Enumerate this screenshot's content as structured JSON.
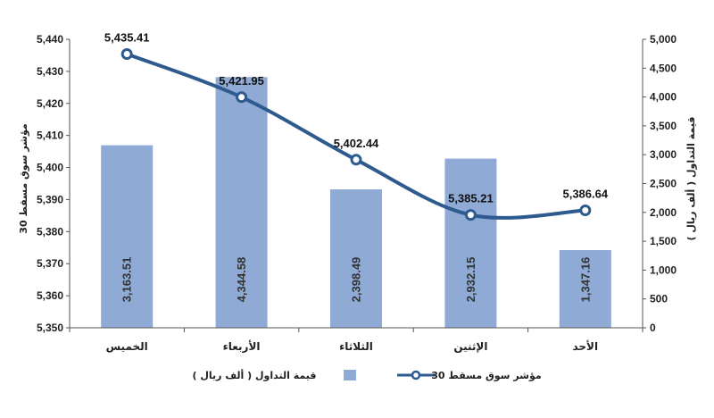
{
  "chart_data": {
    "type": "bar",
    "categories": [
      "الخميس",
      "الأربعاء",
      "الثلاثاء",
      "الإثنين",
      "الأحد"
    ],
    "series": [
      {
        "name": "قيمة التداول ( ألف ريال )",
        "type": "bar",
        "axis": "right",
        "values": [
          3163.51,
          4344.58,
          2398.49,
          2932.15,
          1347.16
        ],
        "labels": [
          "3,163.51",
          "4,344.58",
          "2,398.49",
          "2,932.15",
          "1,347.16"
        ],
        "color": "#8eaad5"
      },
      {
        "name": "مؤشر سوق مسقط 30",
        "type": "line",
        "axis": "left",
        "values": [
          5435.41,
          5421.95,
          5402.44,
          5385.21,
          5386.64
        ],
        "labels": [
          "5,435.41",
          "5,421.95",
          "5,402.44",
          "5,385.21",
          "5,386.64"
        ],
        "color": "#2e5a8e"
      }
    ],
    "ylabel_left": "مؤشر سوق مسقط 30",
    "ylabel_right": "قيمة التداول ( ألف ريال )",
    "ylim_left": [
      5350,
      5440
    ],
    "yticks_left": [
      "5,350",
      "5,360",
      "5,370",
      "5,380",
      "5,390",
      "5,400",
      "5,410",
      "5,420",
      "5,430",
      "5,440"
    ],
    "ylim_right": [
      0,
      5000
    ],
    "yticks_right": [
      "0",
      "500",
      "1,000",
      "1,500",
      "2,000",
      "2,500",
      "3,000",
      "3,500",
      "4,000",
      "4,500",
      "5,000"
    ],
    "grid": false,
    "legend_position": "bottom"
  }
}
